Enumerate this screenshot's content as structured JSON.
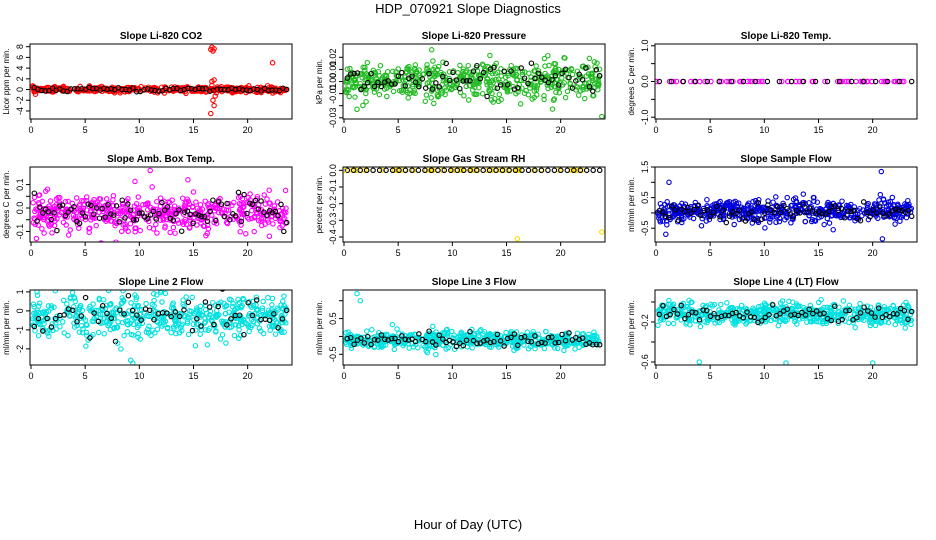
{
  "page": {
    "title": "HDP_070921  Slope Diagnostics",
    "x_axis_title": "Hour of Day (UTC)"
  },
  "chart_data": [
    {
      "type": "scatter",
      "title": "Slope Li-820 CO2",
      "ylabel": "Licor ppm per min.",
      "xlim": [
        0,
        24
      ],
      "ylim": [
        -5.5,
        8.5
      ],
      "xticks": [
        0,
        5,
        10,
        15,
        20
      ],
      "yticks": [
        -4,
        -2,
        0,
        2,
        4,
        6,
        8
      ],
      "ytick_labels": [
        "-4",
        "-2",
        "0",
        "2",
        "4",
        "6",
        "8"
      ],
      "color": "#ff0000",
      "center": 0,
      "spread": 0.25,
      "background_count": 420,
      "primary_count": 70,
      "outliers": [
        [
          16.6,
          7.5
        ],
        [
          16.7,
          7.9
        ],
        [
          16.8,
          7.2
        ],
        [
          16.9,
          7.6
        ],
        [
          16.7,
          1.5
        ],
        [
          16.9,
          1.8
        ],
        [
          17.0,
          -1.2
        ],
        [
          16.8,
          -2.0
        ],
        [
          16.6,
          -4.5
        ],
        [
          16.9,
          -3.0
        ],
        [
          22.3,
          5.0
        ],
        [
          16.7,
          0.8
        ],
        [
          17.1,
          -0.6
        ]
      ]
    },
    {
      "type": "scatter",
      "title": "Slope Li-820 Pressure",
      "ylabel": "kPa per min.",
      "xlim": [
        0,
        24
      ],
      "ylim": [
        -0.031,
        0.031
      ],
      "xticks": [
        0,
        5,
        10,
        15,
        20
      ],
      "yticks": [
        -0.03,
        -0.02,
        -0.01,
        0,
        0.01,
        0.02
      ],
      "ytick_labels": [
        "-0.03",
        "",
        "-0.01",
        "0.00",
        "0.01",
        "0.02"
      ],
      "color": "#22bb22",
      "center": 0,
      "spread": 0.008,
      "background_count": 520,
      "primary_count": 75,
      "outliers": [
        [
          23.8,
          -0.029
        ],
        [
          1.2,
          -0.023
        ]
      ]
    },
    {
      "type": "scatter",
      "title": "Slope Li-820 Temp.",
      "ylabel": "degrees C per min.",
      "xlim": [
        0,
        24
      ],
      "ylim": [
        -1.05,
        1.05
      ],
      "xticks": [
        0,
        5,
        10,
        15,
        20
      ],
      "yticks": [
        -1,
        -0.5,
        0,
        0.5,
        1
      ],
      "ytick_labels": [
        "-1.0",
        "",
        "0.0",
        "",
        "1.0"
      ],
      "color": "#ff00ff",
      "center": 0,
      "spread": 0,
      "background_count": 60,
      "primary_count": 22,
      "outliers": [
        [
          0.05,
          0.0
        ]
      ]
    },
    {
      "type": "scatter",
      "title": "Slope Amb. Box Temp.",
      "ylabel": "degrees C per min.",
      "xlim": [
        0,
        24
      ],
      "ylim": [
        -0.145,
        0.175
      ],
      "xticks": [
        0,
        5,
        10,
        15,
        20
      ],
      "yticks": [
        -0.1,
        -0.05,
        0,
        0.05,
        0.1
      ],
      "ytick_labels": [
        "-0.1",
        "",
        "0.0",
        "",
        "0.1"
      ],
      "color": "#ff00ff",
      "center": -0.02,
      "spread": 0.04,
      "background_count": 520,
      "primary_count": 90,
      "outliers": [
        [
          11.0,
          0.16
        ],
        [
          0.5,
          -0.13
        ]
      ]
    },
    {
      "type": "scatter",
      "title": "Slope Gas Stream RH",
      "ylabel": "percent per min.",
      "xlim": [
        0,
        24
      ],
      "ylim": [
        -0.43,
        0.02
      ],
      "xticks": [
        0,
        5,
        10,
        15,
        20
      ],
      "yticks": [
        -0.4,
        -0.3,
        -0.2,
        -0.1,
        0
      ],
      "ytick_labels": [
        "-0.4",
        "-0.3",
        "-0.2",
        "-0.1",
        "0.0"
      ],
      "color": "#ffdd00",
      "center": 0,
      "spread": 0,
      "background_count": 50,
      "primary_count": 40,
      "outliers": [
        [
          16.0,
          -0.41
        ],
        [
          23.8,
          -0.37
        ],
        [
          0.05,
          0.0
        ]
      ]
    },
    {
      "type": "scatter",
      "title": "Slope Sample Flow",
      "ylabel": "ml/min per min.",
      "xlim": [
        0,
        24
      ],
      "ylim": [
        -0.95,
        1.5
      ],
      "xticks": [
        0,
        5,
        10,
        15,
        20
      ],
      "yticks": [
        -0.5,
        0,
        0.5,
        1,
        1.5
      ],
      "ytick_labels": [
        "-0.5",
        "",
        "0.5",
        "",
        "1.5"
      ],
      "color": "#0000dd",
      "center": 0.05,
      "spread": 0.18,
      "background_count": 560,
      "primary_count": 80,
      "outliers": [
        [
          1.2,
          1.0
        ],
        [
          20.8,
          1.35
        ],
        [
          20.7,
          0.6
        ],
        [
          21.0,
          0.45
        ],
        [
          20.9,
          -0.85
        ],
        [
          0.9,
          -0.7
        ]
      ]
    },
    {
      "type": "scatter",
      "title": "Slope Line 2 Flow",
      "ylabel": "ml/min per min.",
      "xlim": [
        0,
        24
      ],
      "ylim": [
        -2.85,
        1.1
      ],
      "xticks": [
        0,
        5,
        10,
        15,
        20
      ],
      "yticks": [
        -2,
        -1,
        0,
        1
      ],
      "ytick_labels": [
        "-2",
        "-1",
        "0",
        "1"
      ],
      "color": "#00e0e0",
      "center": -0.3,
      "spread": 0.55,
      "background_count": 520,
      "primary_count": 60,
      "outliers": [
        [
          9.2,
          -2.6
        ],
        [
          9.4,
          -2.75
        ],
        [
          8.0,
          -1.7
        ],
        [
          8.3,
          -2.0
        ]
      ]
    },
    {
      "type": "scatter",
      "title": "Slope Line 3 Flow",
      "ylabel": "ml/min per min.",
      "xlim": [
        0,
        24
      ],
      "ylim": [
        -0.8,
        1.3
      ],
      "xticks": [
        0,
        5,
        10,
        15,
        20
      ],
      "yticks": [
        -0.5,
        0,
        0.5,
        1
      ],
      "ytick_labels": [
        "-0.5",
        "",
        "0.5",
        ""
      ],
      "color": "#00e0e0",
      "center": -0.1,
      "spread": 0.12,
      "background_count": 560,
      "primary_count": 75,
      "outliers": [
        [
          1.2,
          1.2
        ],
        [
          1.5,
          1.0
        ]
      ]
    },
    {
      "type": "scatter",
      "title": "Slope Line 4 (LT) Flow",
      "ylabel": "ml/min per min.",
      "xlim": [
        0,
        24
      ],
      "ylim": [
        -0.63,
        0.12
      ],
      "xticks": [
        0,
        5,
        10,
        15,
        20
      ],
      "yticks": [
        -0.6,
        -0.4,
        -0.2,
        0
      ],
      "ytick_labels": [
        "-0.6",
        "",
        "-0.2",
        ""
      ],
      "color": "#00e0e0",
      "center": -0.12,
      "spread": 0.05,
      "background_count": 560,
      "primary_count": 70,
      "outliers": [
        [
          4.0,
          -0.6
        ],
        [
          12.0,
          -0.61
        ],
        [
          20.0,
          -0.61
        ]
      ]
    }
  ]
}
